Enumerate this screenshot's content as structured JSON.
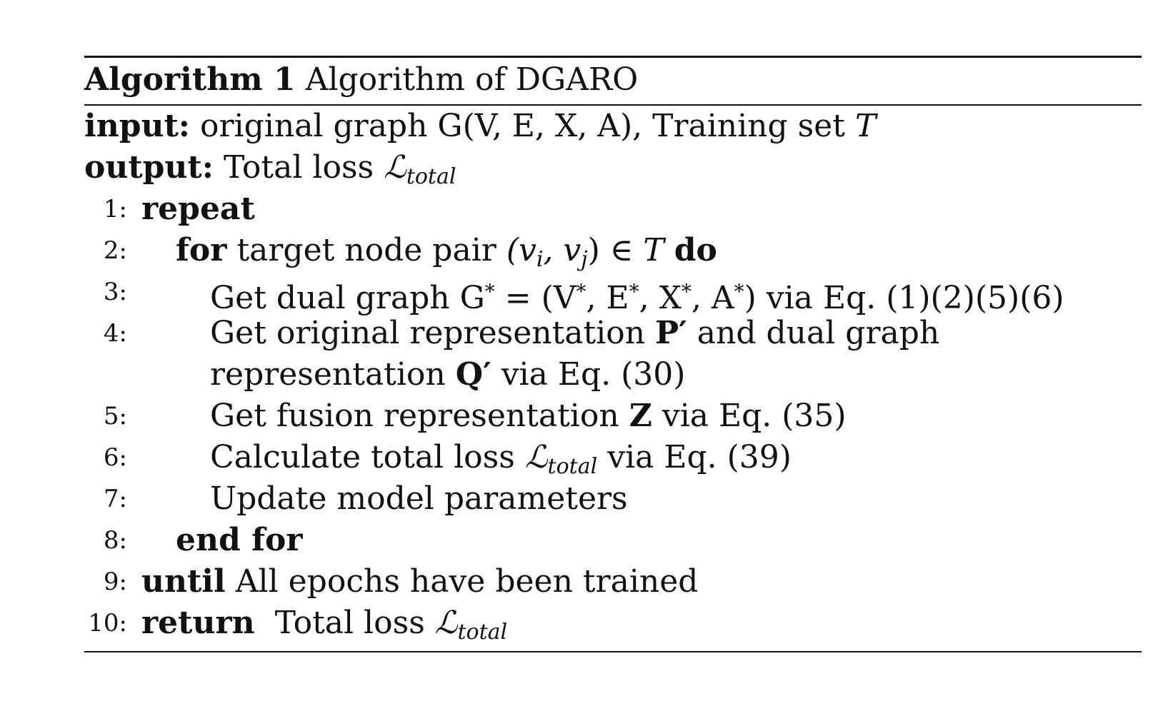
{
  "caption": {
    "label": "Algorithm 1",
    "title": "Algorithm of DGARO"
  },
  "io": {
    "input_label": "input:",
    "input_text": "original graph G(V, E, X, A), Training set",
    "input_var": "T",
    "output_label": "output:",
    "output_text": "Total loss",
    "loss_symbol": "ℒ",
    "loss_sub": "total"
  },
  "lines": [
    {
      "num": "1:",
      "kw": "repeat"
    },
    {
      "num": "2:",
      "kw": "for",
      "text": "target node pair",
      "pair": "(v",
      "i": "i",
      "comma": ", v",
      "j": "j",
      "close": ")",
      "in": " ∈ ",
      "T": "T",
      "kw2": "do"
    },
    {
      "num": "3:",
      "text": "Get dual graph G",
      "star": "*",
      "eq": " = (V",
      "s1": "*",
      "e": ", E",
      "s2": "*",
      "x": ", X",
      "s3": "*",
      "a": ", A",
      "s4": "*",
      "rest": ") via Eq.  (1)(2)(5)(6)"
    },
    {
      "num": "4:",
      "text": "Get original representation",
      "P": "P′",
      "text2": "and dual graph"
    },
    {
      "num": "",
      "text": "representation",
      "Q": "Q′",
      "text2": "via Eq.  (30)"
    },
    {
      "num": "5:",
      "text": "Get fusion representation",
      "Z": "Z",
      "text2": "via Eq.  (35)"
    },
    {
      "num": "6:",
      "text": "Calculate total loss",
      "L": "ℒ",
      "sub": "total",
      "text2": "via Eq.  (39)"
    },
    {
      "num": "7:",
      "text": "Update model parameters"
    },
    {
      "num": "8:",
      "kw": "end for"
    },
    {
      "num": "9:",
      "kw": "until",
      "text": "All epochs have been trained"
    },
    {
      "num": "10:",
      "kw": "return",
      "text": "Total loss",
      "L": "ℒ",
      "sub": "total"
    }
  ]
}
